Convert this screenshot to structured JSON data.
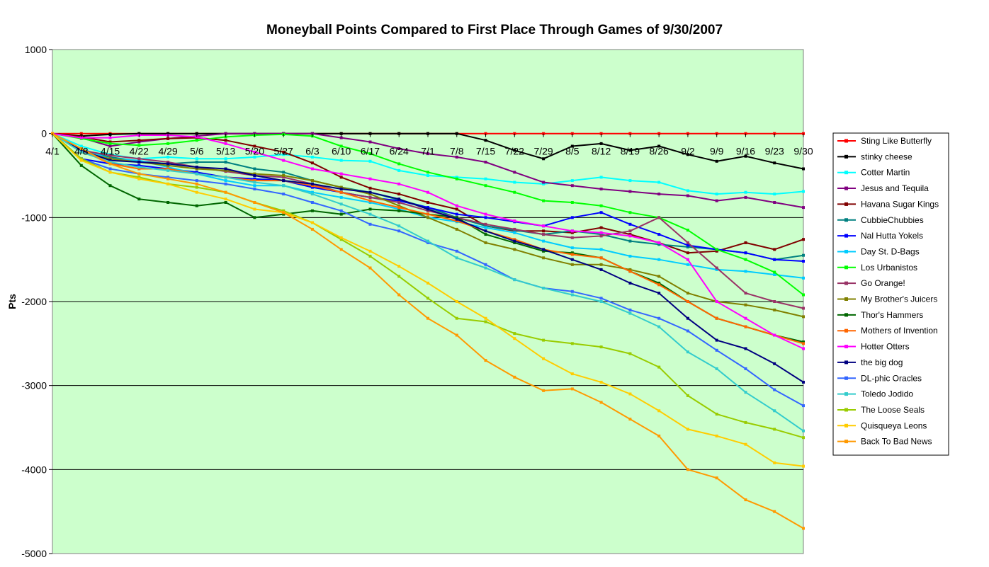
{
  "chart_data": {
    "type": "line",
    "title": "Moneyball Points Compared to First Place Through Games of 9/30/2007",
    "xlabel": "",
    "ylabel": "Pts",
    "ylim": [
      -5000,
      1000
    ],
    "yticks": [
      1000,
      0,
      -1000,
      -2000,
      -3000,
      -4000,
      -5000
    ],
    "ytick_labels": [
      "1000",
      "0",
      "-1000",
      "-2000",
      "-3000",
      "-4000",
      "-5000"
    ],
    "x_start": "4/1",
    "x_end": "9/30",
    "xtick_labels": [
      "4/1",
      "4/8",
      "4/15",
      "4/22",
      "4/29",
      "5/6",
      "5/13",
      "5/20",
      "5/27",
      "6/3",
      "6/10",
      "6/17",
      "6/24",
      "7/1",
      "7/8",
      "7/15",
      "7/22",
      "7/29",
      "8/5",
      "8/12",
      "8/19",
      "8/26",
      "9/2",
      "9/9",
      "9/16",
      "9/23",
      "9/30"
    ],
    "grid": "horizontal",
    "background": "#ccffcc",
    "legend_position": "right",
    "x": [
      "4/1",
      "4/8",
      "4/15",
      "4/22",
      "4/29",
      "5/6",
      "5/13",
      "5/20",
      "5/27",
      "6/3",
      "6/10",
      "6/17",
      "6/24",
      "7/1",
      "7/8",
      "7/15",
      "7/22",
      "7/29",
      "8/5",
      "8/12",
      "8/19",
      "8/26",
      "9/2",
      "9/9",
      "9/16",
      "9/23",
      "9/30"
    ],
    "series": [
      {
        "name": "Sting Like Butterfly",
        "color": "#ff0000",
        "marker": "square",
        "values": [
          0,
          0,
          0,
          0,
          0,
          0,
          0,
          0,
          0,
          0,
          0,
          0,
          0,
          0,
          0,
          0,
          0,
          0,
          0,
          0,
          0,
          0,
          0,
          0,
          0,
          0,
          0
        ]
      },
      {
        "name": "stinky cheese",
        "color": "#000000",
        "marker": "square",
        "values": [
          0,
          -30,
          -10,
          0,
          0,
          0,
          0,
          0,
          0,
          0,
          0,
          0,
          0,
          0,
          0,
          -80,
          -200,
          -300,
          -150,
          -120,
          -200,
          -150,
          -250,
          -330,
          -270,
          -350,
          -420
        ]
      },
      {
        "name": "Cotter Martin",
        "color": "#00ffff",
        "marker": "triangle",
        "values": [
          0,
          -150,
          -250,
          -300,
          -280,
          -300,
          -300,
          -280,
          -250,
          -280,
          -320,
          -330,
          -440,
          -500,
          -520,
          -540,
          -580,
          -600,
          -560,
          -520,
          -560,
          -580,
          -680,
          -720,
          -700,
          -720,
          -690
        ]
      },
      {
        "name": "Jesus and Tequila",
        "color": "#800080",
        "marker": "x",
        "values": [
          0,
          -50,
          -150,
          -100,
          -60,
          -30,
          0,
          0,
          0,
          0,
          -50,
          -100,
          -180,
          -240,
          -280,
          -340,
          -460,
          -580,
          -620,
          -660,
          -690,
          -720,
          -740,
          -800,
          -760,
          -820,
          -880
        ]
      },
      {
        "name": "Havana Sugar Kings",
        "color": "#800000",
        "marker": "star",
        "values": [
          0,
          -40,
          -100,
          -80,
          -60,
          -50,
          -80,
          -150,
          -220,
          -350,
          -520,
          -650,
          -720,
          -820,
          -900,
          -1100,
          -1160,
          -1160,
          -1180,
          -1120,
          -1200,
          -1300,
          -1420,
          -1400,
          -1300,
          -1380,
          -1260
        ]
      },
      {
        "name": "CubbieChubbies",
        "color": "#008080",
        "marker": "triangle",
        "values": [
          0,
          -200,
          -280,
          -330,
          -360,
          -340,
          -340,
          -420,
          -460,
          -560,
          -640,
          -700,
          -790,
          -880,
          -1000,
          -1100,
          -1150,
          -1200,
          -1160,
          -1200,
          -1280,
          -1320,
          -1350,
          -1380,
          -1420,
          -1500,
          -1450
        ]
      },
      {
        "name": "Nal Hutta Yokels",
        "color": "#0000ff",
        "marker": "circle",
        "values": [
          0,
          -300,
          -360,
          -380,
          -420,
          -460,
          -520,
          -540,
          -560,
          -640,
          -700,
          -760,
          -800,
          -880,
          -960,
          -1000,
          -1050,
          -1100,
          -1000,
          -940,
          -1080,
          -1200,
          -1330,
          -1380,
          -1420,
          -1500,
          -1520
        ]
      },
      {
        "name": "Day St. D-Bags",
        "color": "#00ccff",
        "marker": "x",
        "values": [
          0,
          -180,
          -300,
          -320,
          -400,
          -480,
          -560,
          -620,
          -620,
          -700,
          -760,
          -820,
          -900,
          -1000,
          -1050,
          -1120,
          -1180,
          -1280,
          -1360,
          -1380,
          -1460,
          -1500,
          -1560,
          -1620,
          -1640,
          -1680,
          -1720
        ]
      },
      {
        "name": "Los Urbanistos",
        "color": "#00ff00",
        "marker": "star",
        "values": [
          0,
          -60,
          -120,
          -140,
          -120,
          -80,
          -40,
          -20,
          -10,
          -30,
          -150,
          -240,
          -360,
          -460,
          -540,
          -620,
          -700,
          -800,
          -820,
          -860,
          -940,
          -1000,
          -1150,
          -1380,
          -1500,
          -1650,
          -1920
        ]
      },
      {
        "name": "Go Orange!",
        "color": "#993366",
        "marker": "circle",
        "values": [
          0,
          -200,
          -260,
          -300,
          -340,
          -400,
          -450,
          -500,
          -520,
          -600,
          -700,
          -760,
          -820,
          -920,
          -1000,
          -1080,
          -1140,
          -1200,
          -1240,
          -1220,
          -1160,
          -1000,
          -1300,
          -1600,
          -1900,
          -2000,
          -2080
        ]
      },
      {
        "name": "My Brother's Juicers",
        "color": "#808000",
        "marker": "triangle",
        "values": [
          0,
          -220,
          -300,
          -340,
          -380,
          -420,
          -440,
          -480,
          -500,
          -560,
          -640,
          -720,
          -860,
          -1000,
          -1140,
          -1300,
          -1380,
          -1480,
          -1560,
          -1560,
          -1620,
          -1700,
          -1900,
          -2000,
          -2040,
          -2100,
          -2180
        ]
      },
      {
        "name": "Thor's Hammers",
        "color": "#006600",
        "marker": "star",
        "values": [
          0,
          -380,
          -620,
          -780,
          -820,
          -860,
          -820,
          -1000,
          -960,
          -920,
          -960,
          -900,
          -920,
          -960,
          -1000,
          -1200,
          -1300,
          -1400,
          -1420,
          -1480,
          -1640,
          -1780,
          -2000,
          -2200,
          -2300,
          -2400,
          -2480
        ]
      },
      {
        "name": "Mothers of Invention",
        "color": "#ff6600",
        "marker": "circle",
        "values": [
          0,
          -200,
          -360,
          -420,
          -420,
          -480,
          -520,
          -560,
          -560,
          -620,
          -700,
          -800,
          -880,
          -960,
          -1040,
          -1160,
          -1260,
          -1380,
          -1440,
          -1480,
          -1640,
          -1800,
          -2000,
          -2200,
          -2300,
          -2400,
          -2500
        ]
      },
      {
        "name": "Hotter Otters",
        "color": "#ff00ff",
        "marker": "star",
        "values": [
          0,
          -50,
          -50,
          -20,
          -20,
          -40,
          -120,
          -220,
          -320,
          -420,
          -480,
          -540,
          -600,
          -700,
          -860,
          -960,
          -1040,
          -1100,
          -1160,
          -1180,
          -1220,
          -1300,
          -1500,
          -2000,
          -2200,
          -2400,
          -2560
        ]
      },
      {
        "name": "the big dog",
        "color": "#000080",
        "marker": "circle",
        "values": [
          0,
          -200,
          -320,
          -340,
          -360,
          -400,
          -420,
          -500,
          -560,
          -600,
          -660,
          -700,
          -780,
          -900,
          -1020,
          -1160,
          -1280,
          -1380,
          -1500,
          -1620,
          -1780,
          -1900,
          -2200,
          -2460,
          -2560,
          -2740,
          -2960
        ]
      },
      {
        "name": "DL-phic Oracles",
        "color": "#3366ff",
        "marker": "circle",
        "values": [
          0,
          -300,
          -420,
          -480,
          -520,
          -560,
          -600,
          -660,
          -720,
          -820,
          -920,
          -1080,
          -1160,
          -1300,
          -1400,
          -1560,
          -1740,
          -1840,
          -1880,
          -1960,
          -2100,
          -2200,
          -2350,
          -2580,
          -2800,
          -3050,
          -3240
        ]
      },
      {
        "name": "Toledo Jodido",
        "color": "#33cccc",
        "marker": "x",
        "values": [
          0,
          -220,
          -340,
          -400,
          -440,
          -480,
          -520,
          -580,
          -620,
          -720,
          -840,
          -960,
          -1100,
          -1280,
          -1480,
          -1600,
          -1740,
          -1840,
          -1920,
          -2000,
          -2140,
          -2300,
          -2600,
          -2800,
          -3080,
          -3300,
          -3540
        ]
      },
      {
        "name": "The Loose Seals",
        "color": "#99cc00",
        "marker": "triangle",
        "values": [
          0,
          -300,
          -460,
          -520,
          -600,
          -640,
          -700,
          -820,
          -920,
          -1060,
          -1260,
          -1460,
          -1700,
          -1960,
          -2200,
          -2240,
          -2380,
          -2460,
          -2500,
          -2540,
          -2620,
          -2780,
          -3120,
          -3340,
          -3440,
          -3520,
          -3620
        ]
      },
      {
        "name": "Quisqueya Leons",
        "color": "#ffcc00",
        "marker": "circle",
        "values": [
          0,
          -320,
          -460,
          -540,
          -600,
          -700,
          -780,
          -900,
          -940,
          -1060,
          -1240,
          -1400,
          -1580,
          -1780,
          -2000,
          -2200,
          -2440,
          -2680,
          -2860,
          -2960,
          -3100,
          -3300,
          -3520,
          -3600,
          -3700,
          -3920,
          -3960
        ]
      },
      {
        "name": "Back To Bad News",
        "color": "#ff9900",
        "marker": "triangle",
        "values": [
          0,
          -180,
          -360,
          -480,
          -540,
          -600,
          -700,
          -820,
          -940,
          -1140,
          -1380,
          -1600,
          -1920,
          -2200,
          -2400,
          -2700,
          -2900,
          -3060,
          -3040,
          -3200,
          -3400,
          -3600,
          -4000,
          -4100,
          -4360,
          -4500,
          -4700
        ]
      }
    ]
  }
}
